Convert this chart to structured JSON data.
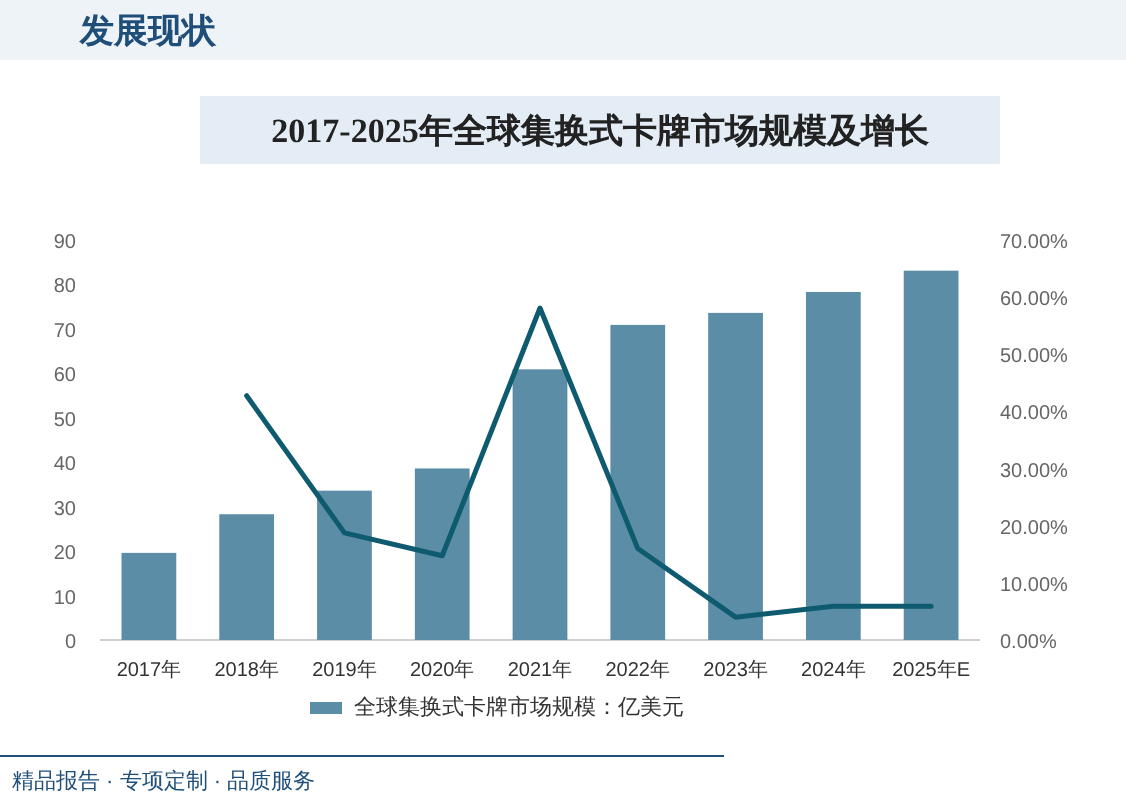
{
  "chart_data": {
    "type": "bar",
    "title": "2017-2025年全球集换式卡牌市场规模及增长",
    "annotations": [
      "发展现状",
      "精品报告 · 专项定制 · 品质服务"
    ],
    "categories": [
      "2017年",
      "2018年",
      "2019年",
      "2020年",
      "2021年",
      "2022年",
      "2023年",
      "2024年",
      "2025年E"
    ],
    "series": [
      {
        "name": "全球集换式卡牌市场规模：亿美元",
        "color": "#5b8ea6",
        "values": [
          19.6,
          28.3,
          33.6,
          38.6,
          60.9,
          70.9,
          73.6,
          78.3,
          83.1
        ]
      },
      {
        "type": "line",
        "axis": "y2",
        "color": "#0e5a6e",
        "values": [
          null,
          42.75,
          18.75,
          14.75,
          58.1,
          16,
          4,
          5.9,
          5.9
        ]
      }
    ],
    "ylim": [
      0,
      90
    ],
    "yticks": [
      0,
      10,
      20,
      30,
      40,
      50,
      60,
      70,
      80,
      90
    ],
    "y2lim": [
      0,
      70
    ],
    "y2ticks": [
      {
        "value": 0,
        "label": "0.00%"
      },
      {
        "value": 10,
        "label": "10.00%"
      },
      {
        "value": 20,
        "label": "20.00%"
      },
      {
        "value": 30,
        "label": "30.00%"
      },
      {
        "value": 40,
        "label": "40.00%"
      },
      {
        "value": 50,
        "label": "50.00%"
      },
      {
        "value": 60,
        "label": "60.00%"
      },
      {
        "value": 70,
        "label": "70.00%"
      }
    ],
    "legend": "bottom",
    "grid": false
  }
}
